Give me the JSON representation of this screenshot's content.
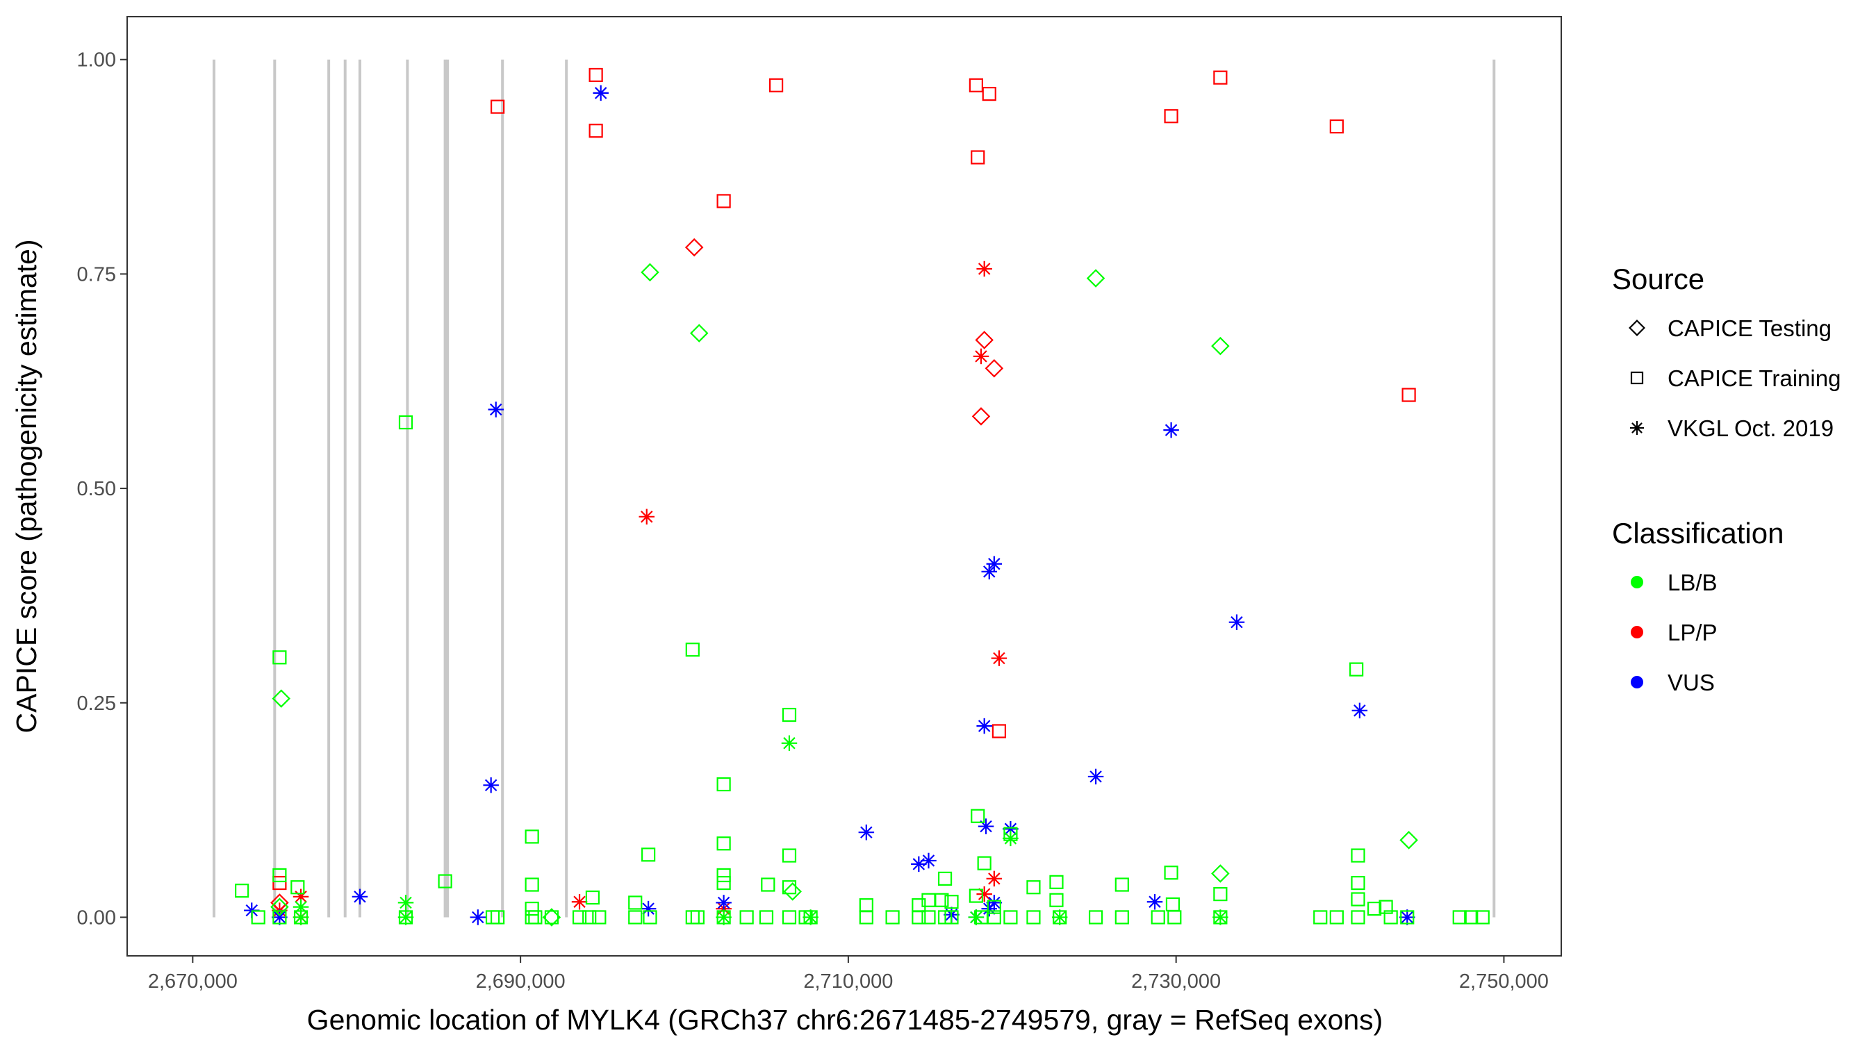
{
  "chart_data": {
    "type": "scatter",
    "xlabel": "Genomic location of MYLK4 (GRCh37 chr6:2671485-2749579, gray = RefSeq exons)",
    "ylabel": "CAPICE score (pathogenicity estimate)",
    "xlim": [
      2666000,
      2753500
    ],
    "ylim": [
      -0.045,
      1.05
    ],
    "xticks": [
      2670000,
      2690000,
      2710000,
      2730000,
      2750000
    ],
    "xtick_labels": [
      "2,670,000",
      "2,690,000",
      "2,710,000",
      "2,730,000",
      "2,750,000"
    ],
    "yticks": [
      0,
      0.25,
      0.5,
      0.75,
      1.0
    ],
    "ytick_labels": [
      "0.00",
      "0.25",
      "0.50",
      "0.75",
      "1.00"
    ],
    "grid": false,
    "legend_placement": "right",
    "exons": [
      2671300,
      2675000,
      2678300,
      2679300,
      2680200,
      2683100,
      2685400,
      2685550,
      2688900,
      2692800,
      2749400
    ],
    "legend": {
      "source_title": "Source",
      "sources": [
        {
          "key": "testing",
          "label": "CAPICE Testing",
          "shape": "diamond"
        },
        {
          "key": "training",
          "label": "CAPICE Training",
          "shape": "square"
        },
        {
          "key": "vkgl",
          "label": "VKGL Oct. 2019",
          "shape": "asterisk"
        }
      ],
      "class_title": "Classification",
      "classes": [
        {
          "key": "LB/B",
          "label": "LB/B",
          "color": "#00ff00"
        },
        {
          "key": "LP/P",
          "label": "LP/P",
          "color": "#ff0000"
        },
        {
          "key": "VUS",
          "label": "VUS",
          "color": "#0000ff"
        }
      ]
    },
    "points": [
      [
        2694600,
        0.982,
        "training",
        "LP/P"
      ],
      [
        2688600,
        0.945,
        "training",
        "LP/P"
      ],
      [
        2694600,
        0.917,
        "training",
        "LP/P"
      ],
      [
        2705600,
        0.97,
        "training",
        "LP/P"
      ],
      [
        2702400,
        0.835,
        "training",
        "LP/P"
      ],
      [
        2717800,
        0.97,
        "training",
        "LP/P"
      ],
      [
        2718600,
        0.96,
        "training",
        "LP/P"
      ],
      [
        2717900,
        0.886,
        "training",
        "LP/P"
      ],
      [
        2732700,
        0.979,
        "training",
        "LP/P"
      ],
      [
        2729700,
        0.934,
        "training",
        "LP/P"
      ],
      [
        2739800,
        0.922,
        "training",
        "LP/P"
      ],
      [
        2744200,
        0.609,
        "training",
        "LP/P"
      ],
      [
        2719200,
        0.217,
        "training",
        "LP/P"
      ],
      [
        2675300,
        0.04,
        "training",
        "LP/P"
      ],
      [
        2700600,
        0.781,
        "testing",
        "LP/P"
      ],
      [
        2718300,
        0.673,
        "testing",
        "LP/P"
      ],
      [
        2718900,
        0.64,
        "testing",
        "LP/P"
      ],
      [
        2718100,
        0.584,
        "testing",
        "LP/P"
      ],
      [
        2675300,
        0.017,
        "testing",
        "LP/P"
      ],
      [
        2718300,
        0.756,
        "vkgl",
        "LP/P"
      ],
      [
        2718100,
        0.654,
        "vkgl",
        "LP/P"
      ],
      [
        2697700,
        0.467,
        "vkgl",
        "LP/P"
      ],
      [
        2719200,
        0.302,
        "vkgl",
        "LP/P"
      ],
      [
        2718900,
        0.045,
        "vkgl",
        "LP/P"
      ],
      [
        2693600,
        0.018,
        "vkgl",
        "LP/P"
      ],
      [
        2676600,
        0.024,
        "vkgl",
        "LP/P"
      ],
      [
        2676600,
        0.0,
        "vkgl",
        "LP/P"
      ],
      [
        2702400,
        0.01,
        "vkgl",
        "LP/P"
      ],
      [
        2718300,
        0.027,
        "vkgl",
        "LP/P"
      ],
      [
        2675300,
        0.008,
        "vkgl",
        "LP/P"
      ],
      [
        2694900,
        0.961,
        "vkgl",
        "VUS"
      ],
      [
        2688500,
        0.592,
        "vkgl",
        "VUS"
      ],
      [
        2729700,
        0.568,
        "vkgl",
        "VUS"
      ],
      [
        2718900,
        0.412,
        "vkgl",
        "VUS"
      ],
      [
        2718600,
        0.403,
        "vkgl",
        "VUS"
      ],
      [
        2733700,
        0.344,
        "vkgl",
        "VUS"
      ],
      [
        2718300,
        0.223,
        "vkgl",
        "VUS"
      ],
      [
        2741200,
        0.241,
        "vkgl",
        "VUS"
      ],
      [
        2688200,
        0.154,
        "vkgl",
        "VUS"
      ],
      [
        2725100,
        0.164,
        "vkgl",
        "VUS"
      ],
      [
        2711100,
        0.099,
        "vkgl",
        "VUS"
      ],
      [
        2718400,
        0.106,
        "vkgl",
        "VUS"
      ],
      [
        2719900,
        0.103,
        "vkgl",
        "VUS"
      ],
      [
        2714300,
        0.062,
        "vkgl",
        "VUS"
      ],
      [
        2714900,
        0.066,
        "vkgl",
        "VUS"
      ],
      [
        2680200,
        0.024,
        "vkgl",
        "VUS"
      ],
      [
        2673600,
        0.008,
        "vkgl",
        "VUS"
      ],
      [
        2675300,
        0.0,
        "vkgl",
        "VUS"
      ],
      [
        2687400,
        0.0,
        "vkgl",
        "VUS"
      ],
      [
        2697800,
        0.01,
        "vkgl",
        "VUS"
      ],
      [
        2702400,
        0.017,
        "vkgl",
        "VUS"
      ],
      [
        2716300,
        0.003,
        "vkgl",
        "VUS"
      ],
      [
        2717800,
        0.0,
        "vkgl",
        "VUS"
      ],
      [
        2718900,
        0.017,
        "vkgl",
        "VUS"
      ],
      [
        2728700,
        0.018,
        "vkgl",
        "VUS"
      ],
      [
        2744100,
        0.0,
        "vkgl",
        "VUS"
      ],
      [
        2718600,
        0.01,
        "vkgl",
        "VUS"
      ],
      [
        2683000,
        0.577,
        "training",
        "LB/B"
      ],
      [
        2675300,
        0.303,
        "training",
        "LB/B"
      ],
      [
        2700500,
        0.312,
        "training",
        "LB/B"
      ],
      [
        2741000,
        0.289,
        "training",
        "LB/B"
      ],
      [
        2706400,
        0.236,
        "training",
        "LB/B"
      ],
      [
        2702400,
        0.155,
        "training",
        "LB/B"
      ],
      [
        2690700,
        0.094,
        "training",
        "LB/B"
      ],
      [
        2702400,
        0.086,
        "training",
        "LB/B"
      ],
      [
        2697800,
        0.073,
        "training",
        "LB/B"
      ],
      [
        2706400,
        0.072,
        "training",
        "LB/B"
      ],
      [
        2741100,
        0.072,
        "training",
        "LB/B"
      ],
      [
        2717900,
        0.118,
        "training",
        "LB/B"
      ],
      [
        2718300,
        0.063,
        "training",
        "LB/B"
      ],
      [
        2719900,
        0.097,
        "training",
        "LB/B"
      ],
      [
        2673000,
        0.031,
        "training",
        "LB/B"
      ],
      [
        2675300,
        0.049,
        "training",
        "LB/B"
      ],
      [
        2676400,
        0.035,
        "training",
        "LB/B"
      ],
      [
        2685400,
        0.042,
        "training",
        "LB/B"
      ],
      [
        2690700,
        0.038,
        "training",
        "LB/B"
      ],
      [
        2702400,
        0.049,
        "training",
        "LB/B"
      ],
      [
        2702400,
        0.04,
        "training",
        "LB/B"
      ],
      [
        2705100,
        0.038,
        "training",
        "LB/B"
      ],
      [
        2706400,
        0.035,
        "training",
        "LB/B"
      ],
      [
        2715900,
        0.045,
        "training",
        "LB/B"
      ],
      [
        2721300,
        0.035,
        "training",
        "LB/B"
      ],
      [
        2722700,
        0.041,
        "training",
        "LB/B"
      ],
      [
        2722700,
        0.02,
        "training",
        "LB/B"
      ],
      [
        2726700,
        0.038,
        "training",
        "LB/B"
      ],
      [
        2729700,
        0.052,
        "training",
        "LB/B"
      ],
      [
        2732700,
        0.027,
        "training",
        "LB/B"
      ],
      [
        2741100,
        0.04,
        "training",
        "LB/B"
      ],
      [
        2741100,
        0.021,
        "training",
        "LB/B"
      ],
      [
        2694400,
        0.023,
        "training",
        "LB/B"
      ],
      [
        2697000,
        0.017,
        "training",
        "LB/B"
      ],
      [
        2690700,
        0.01,
        "training",
        "LB/B"
      ],
      [
        2711100,
        0.014,
        "training",
        "LB/B"
      ],
      [
        2714300,
        0.014,
        "training",
        "LB/B"
      ],
      [
        2714900,
        0.02,
        "training",
        "LB/B"
      ],
      [
        2715700,
        0.02,
        "training",
        "LB/B"
      ],
      [
        2716300,
        0.018,
        "training",
        "LB/B"
      ],
      [
        2718900,
        0.012,
        "training",
        "LB/B"
      ],
      [
        2729800,
        0.015,
        "training",
        "LB/B"
      ],
      [
        2742100,
        0.01,
        "training",
        "LB/B"
      ],
      [
        2742800,
        0.012,
        "training",
        "LB/B"
      ],
      [
        2717800,
        0.025,
        "training",
        "LB/B"
      ],
      [
        2674000,
        0.0,
        "training",
        "LB/B"
      ],
      [
        2675300,
        0.0,
        "training",
        "LB/B"
      ],
      [
        2676600,
        0.0,
        "training",
        "LB/B"
      ],
      [
        2683000,
        0.0,
        "training",
        "LB/B"
      ],
      [
        2688300,
        0.0,
        "training",
        "LB/B"
      ],
      [
        2688600,
        0.0,
        "training",
        "LB/B"
      ],
      [
        2690700,
        0.0,
        "training",
        "LB/B"
      ],
      [
        2690900,
        0.0,
        "training",
        "LB/B"
      ],
      [
        2691900,
        0.0,
        "training",
        "LB/B"
      ],
      [
        2693600,
        0.0,
        "training",
        "LB/B"
      ],
      [
        2694200,
        0.0,
        "training",
        "LB/B"
      ],
      [
        2694800,
        0.0,
        "training",
        "LB/B"
      ],
      [
        2697000,
        0.0,
        "training",
        "LB/B"
      ],
      [
        2697900,
        0.0,
        "training",
        "LB/B"
      ],
      [
        2700500,
        0.0,
        "training",
        "LB/B"
      ],
      [
        2700800,
        0.0,
        "training",
        "LB/B"
      ],
      [
        2702400,
        0.0,
        "training",
        "LB/B"
      ],
      [
        2703800,
        0.0,
        "training",
        "LB/B"
      ],
      [
        2705000,
        0.0,
        "training",
        "LB/B"
      ],
      [
        2706400,
        0.0,
        "training",
        "LB/B"
      ],
      [
        2707400,
        0.0,
        "training",
        "LB/B"
      ],
      [
        2707700,
        0.0,
        "training",
        "LB/B"
      ],
      [
        2711100,
        0.0,
        "training",
        "LB/B"
      ],
      [
        2712700,
        0.0,
        "training",
        "LB/B"
      ],
      [
        2714300,
        0.0,
        "training",
        "LB/B"
      ],
      [
        2714900,
        0.0,
        "training",
        "LB/B"
      ],
      [
        2715900,
        0.0,
        "training",
        "LB/B"
      ],
      [
        2716300,
        0.0,
        "training",
        "LB/B"
      ],
      [
        2718100,
        0.0,
        "training",
        "LB/B"
      ],
      [
        2718900,
        0.0,
        "training",
        "LB/B"
      ],
      [
        2719900,
        0.0,
        "training",
        "LB/B"
      ],
      [
        2721300,
        0.0,
        "training",
        "LB/B"
      ],
      [
        2722900,
        0.0,
        "training",
        "LB/B"
      ],
      [
        2725100,
        0.0,
        "training",
        "LB/B"
      ],
      [
        2726700,
        0.0,
        "training",
        "LB/B"
      ],
      [
        2728900,
        0.0,
        "training",
        "LB/B"
      ],
      [
        2729900,
        0.0,
        "training",
        "LB/B"
      ],
      [
        2732700,
        0.0,
        "training",
        "LB/B"
      ],
      [
        2738800,
        0.0,
        "training",
        "LB/B"
      ],
      [
        2739800,
        0.0,
        "training",
        "LB/B"
      ],
      [
        2741100,
        0.0,
        "training",
        "LB/B"
      ],
      [
        2743100,
        0.0,
        "training",
        "LB/B"
      ],
      [
        2744100,
        0.0,
        "training",
        "LB/B"
      ],
      [
        2747300,
        0.0,
        "training",
        "LB/B"
      ],
      [
        2748000,
        0.0,
        "training",
        "LB/B"
      ],
      [
        2748700,
        0.0,
        "training",
        "LB/B"
      ],
      [
        2697900,
        0.752,
        "testing",
        "LB/B"
      ],
      [
        2700900,
        0.681,
        "testing",
        "LB/B"
      ],
      [
        2725100,
        0.745,
        "testing",
        "LB/B"
      ],
      [
        2732700,
        0.666,
        "testing",
        "LB/B"
      ],
      [
        2675400,
        0.255,
        "testing",
        "LB/B"
      ],
      [
        2744200,
        0.09,
        "testing",
        "LB/B"
      ],
      [
        2706600,
        0.03,
        "testing",
        "LB/B"
      ],
      [
        2732700,
        0.051,
        "testing",
        "LB/B"
      ],
      [
        2675300,
        0.012,
        "testing",
        "LB/B"
      ],
      [
        2691900,
        0.0,
        "testing",
        "LB/B"
      ],
      [
        2706400,
        0.203,
        "vkgl",
        "LB/B"
      ],
      [
        2719900,
        0.092,
        "vkgl",
        "LB/B"
      ],
      [
        2683000,
        0.017,
        "vkgl",
        "LB/B"
      ],
      [
        2683000,
        0.0,
        "vkgl",
        "LB/B"
      ],
      [
        2702400,
        0.0,
        "vkgl",
        "LB/B"
      ],
      [
        2717800,
        0.0,
        "vkgl",
        "LB/B"
      ],
      [
        2722900,
        0.0,
        "vkgl",
        "LB/B"
      ],
      [
        2732700,
        0.0,
        "vkgl",
        "LB/B"
      ],
      [
        2707700,
        0.0,
        "vkgl",
        "LB/B"
      ],
      [
        2676600,
        0.0,
        "vkgl",
        "LB/B"
      ],
      [
        2676600,
        0.012,
        "vkgl",
        "LB/B"
      ]
    ]
  }
}
